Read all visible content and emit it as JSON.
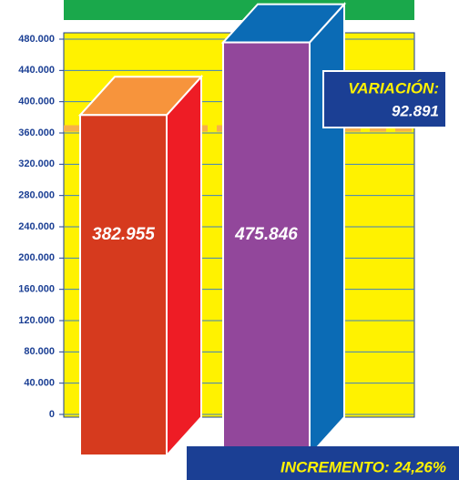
{
  "chart_data": {
    "type": "bar3d",
    "categories": [
      null,
      null
    ],
    "values": [
      382955,
      475846
    ],
    "value_labels": [
      "382.955",
      "475.846"
    ],
    "colors": [
      {
        "front": "#d63a1e",
        "side": "#ee1c25",
        "top": "#f7943c"
      },
      {
        "front": "#92479b",
        "side": "#0b6bb5",
        "top": "#0b6bb5"
      }
    ],
    "ylim": [
      0,
      480000
    ],
    "yticks": [
      {
        "value": 0,
        "label": "0"
      },
      {
        "value": 40000,
        "label": "40.000"
      },
      {
        "value": 80000,
        "label": "80.000"
      },
      {
        "value": 120000,
        "label": "120.000"
      },
      {
        "value": 160000,
        "label": "160.000"
      },
      {
        "value": 200000,
        "label": "200.000"
      },
      {
        "value": 240000,
        "label": "240.000"
      },
      {
        "value": 280000,
        "label": "280.000"
      },
      {
        "value": 320000,
        "label": "320.000"
      },
      {
        "value": 360000,
        "label": "360.000"
      },
      {
        "value": 400000,
        "label": "400.000"
      },
      {
        "value": 440000,
        "label": "440.000"
      },
      {
        "value": 480000,
        "label": "480.000"
      }
    ],
    "grid": true,
    "annotations": [
      "VARIACIÓN:",
      "92.891",
      "INCREMENTO: 24,26%"
    ]
  }
}
